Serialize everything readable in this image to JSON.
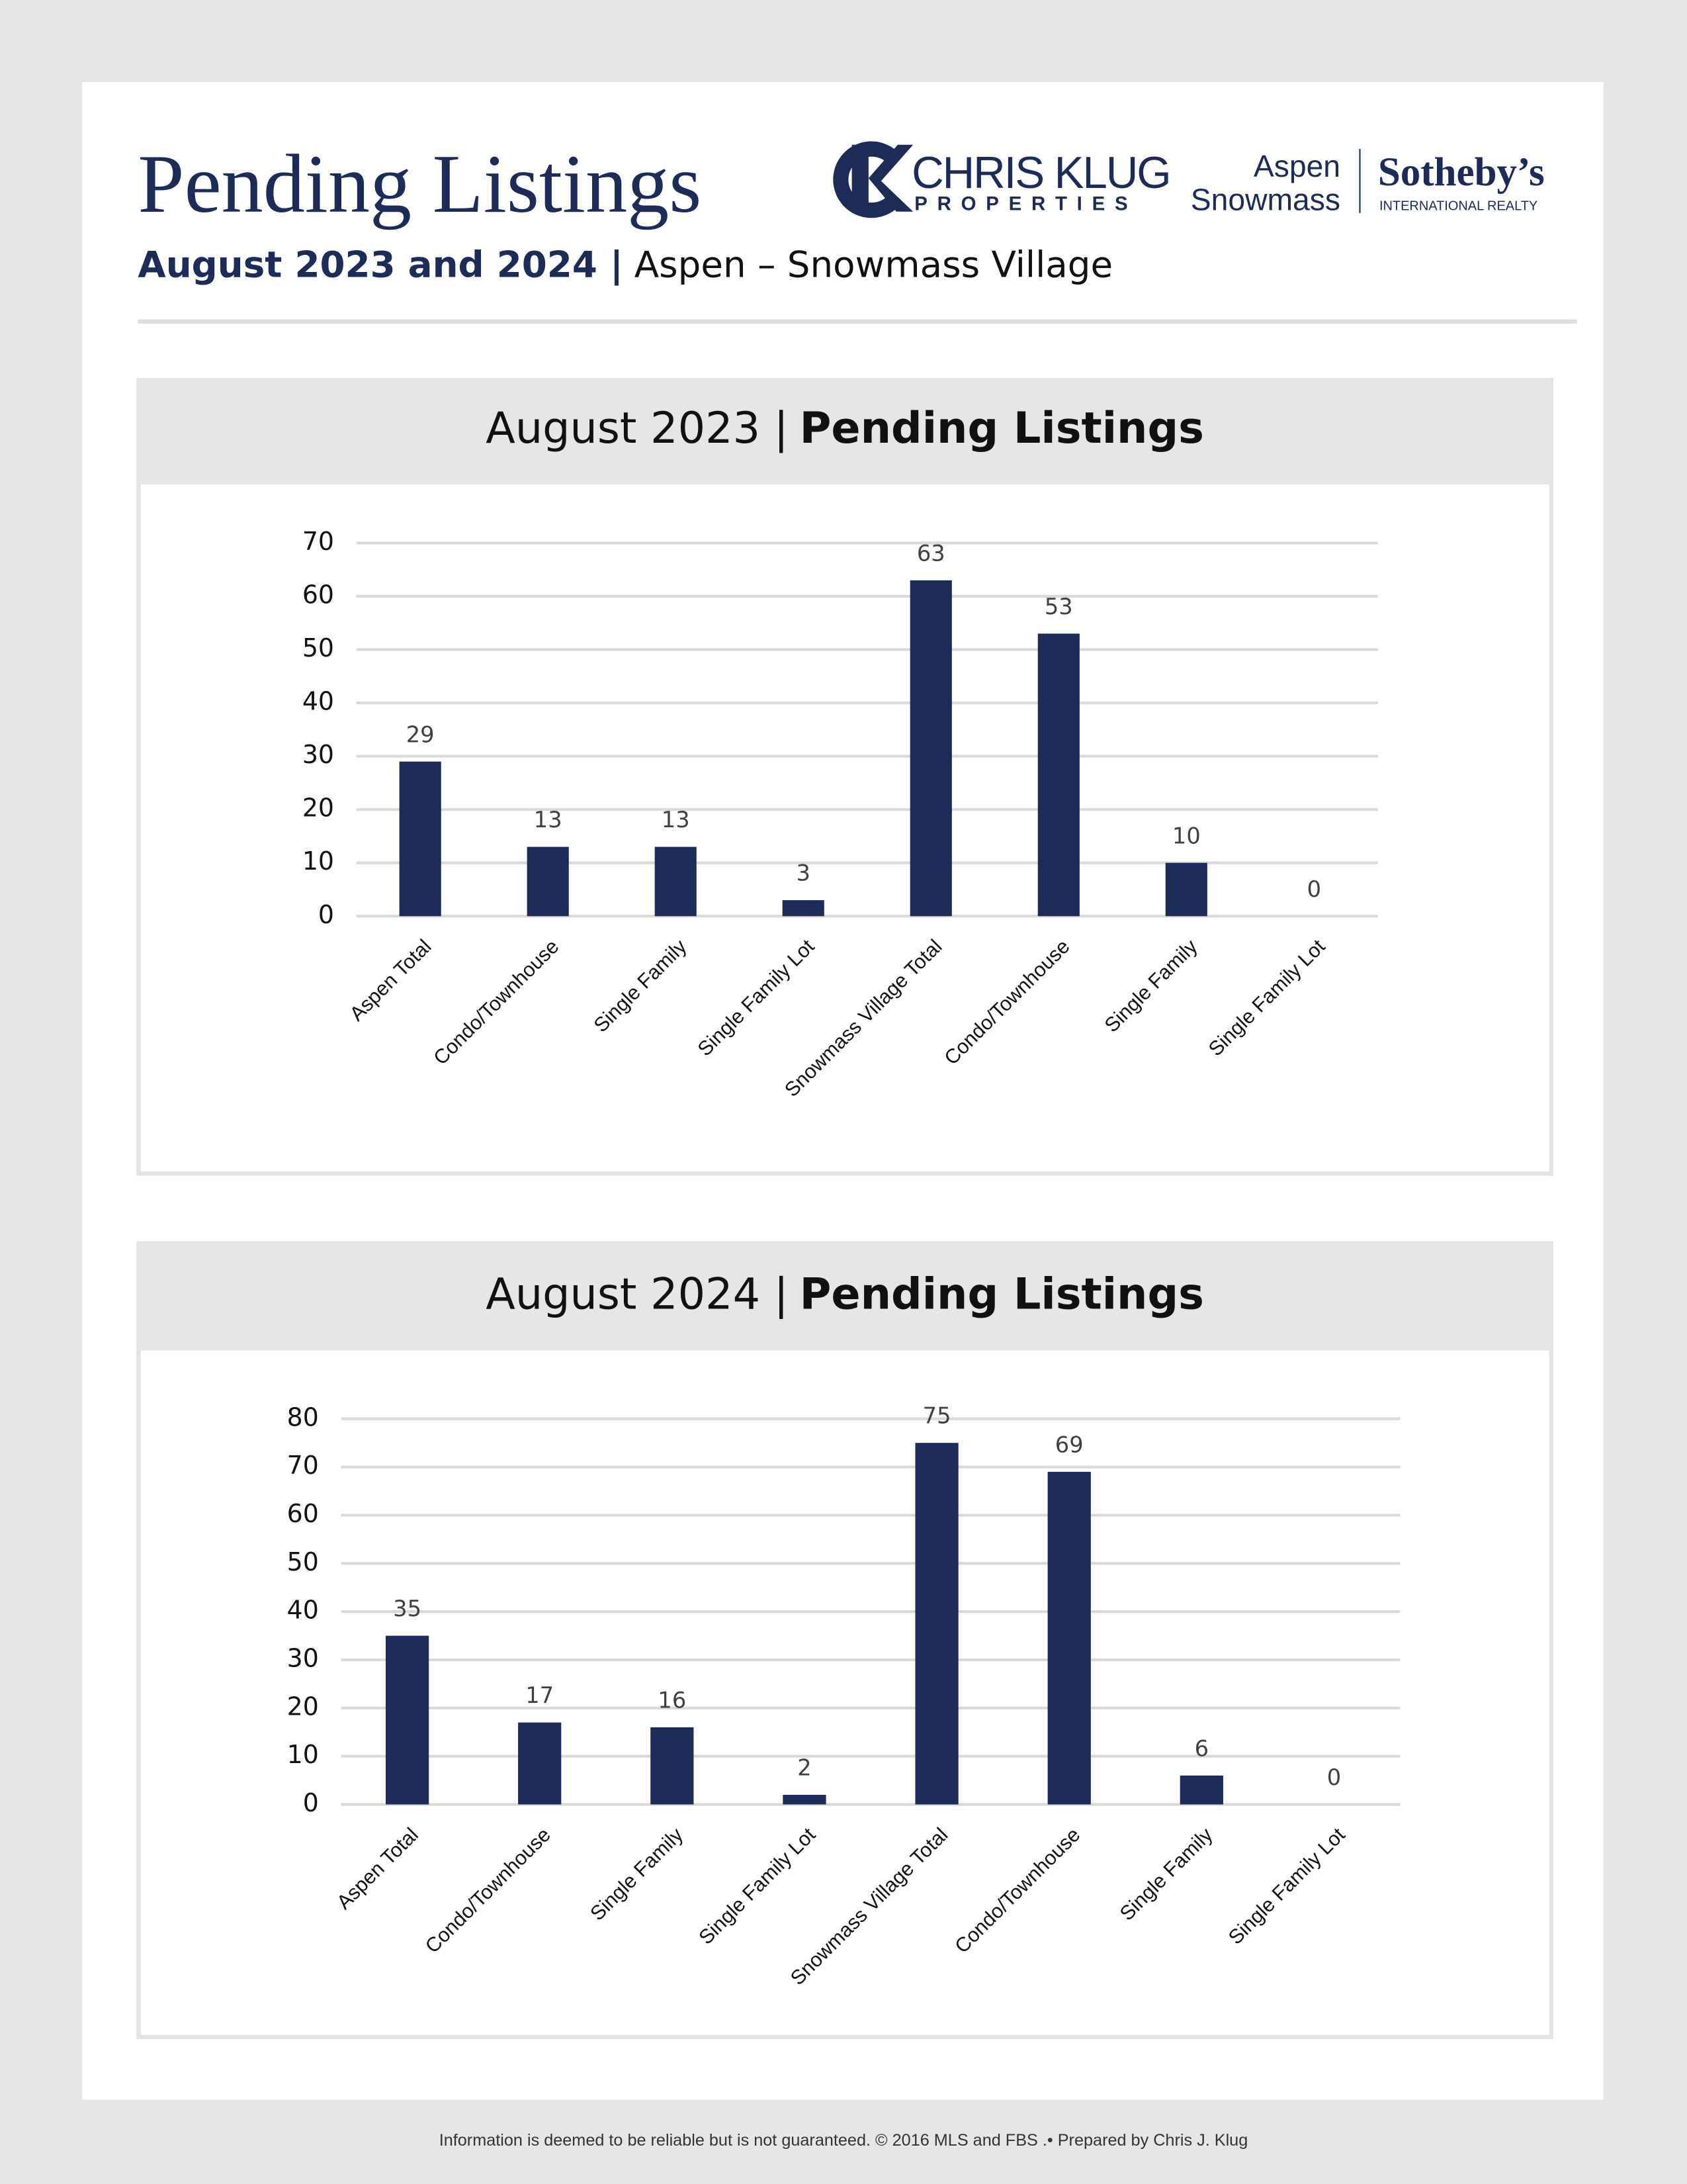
{
  "header": {
    "title": "Pending Listings",
    "subtitle_bold": "August 2023 and 2024 |",
    "subtitle": "Aspen – Snowmass Village",
    "logo_left": {
      "name": "CHRIS KLUG",
      "tagline": "PROPERTIES"
    },
    "logo_right": {
      "line1": "Aspen",
      "line2": "Snowmass",
      "brand": "Sotheby’s",
      "brand_sub": "INTERNATIONAL REALTY"
    }
  },
  "chart_data": [
    {
      "type": "bar",
      "title": {
        "period": "August 2023 |",
        "name": "Pending Listings"
      },
      "categories": [
        "Aspen Total",
        "Condo/Townhouse",
        "Single Family",
        "Single Family Lot",
        "Snowmass Village Total",
        "Condo/Townhouse",
        "Single Family",
        "Single Family Lot"
      ],
      "values": [
        29,
        13,
        13,
        3,
        63,
        53,
        10,
        0
      ],
      "color": "#1c2b57",
      "ylim": [
        0,
        70
      ],
      "yticks": [
        0,
        10,
        20,
        30,
        40,
        50,
        60,
        70
      ],
      "grid": true
    },
    {
      "type": "bar",
      "title": {
        "period": "August 2024 |",
        "name": "Pending Listings"
      },
      "categories": [
        "Aspen Total",
        "Condo/Townhouse",
        "Single Family",
        "Single Family Lot",
        "Snowmass Village Total",
        "Condo/Townhouse",
        "Single Family",
        "Single Family Lot"
      ],
      "values": [
        35,
        17,
        16,
        2,
        75,
        69,
        6,
        0
      ],
      "color": "#1c2b57",
      "ylim": [
        0,
        80
      ],
      "yticks": [
        0,
        10,
        20,
        30,
        40,
        50,
        60,
        70,
        80
      ],
      "grid": true
    }
  ],
  "footer": "Information is deemed to be reliable but is not guaranteed. © 2016 MLS and FBS .• Prepared by Chris J. Klug"
}
